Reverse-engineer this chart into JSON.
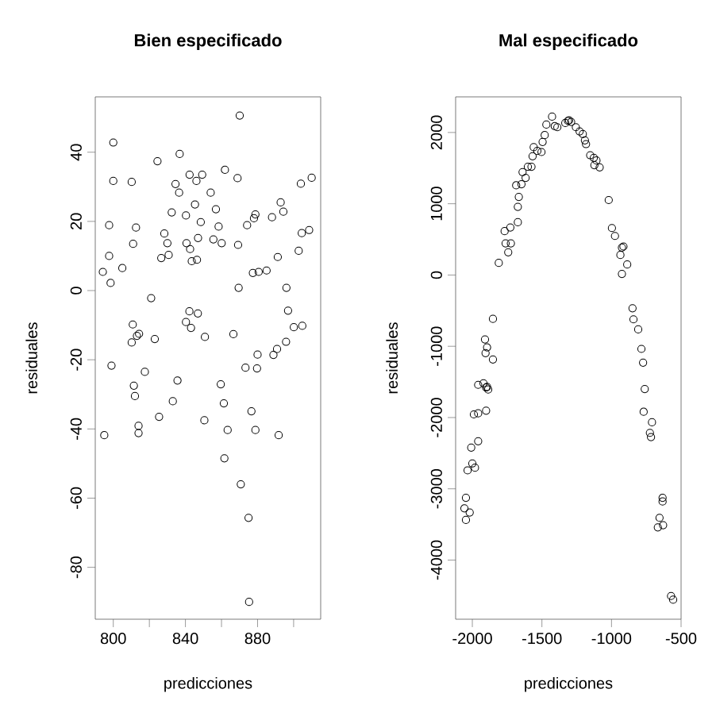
{
  "chart_data": [
    {
      "type": "scatter",
      "title": "Bien especificado",
      "xlabel": "predicciones",
      "ylabel": "residuales",
      "color": "#000000",
      "marker": "circle",
      "xlim": [
        790,
        915
      ],
      "ylim": [
        -95,
        56
      ],
      "xticks": [
        800,
        {
          "value": 820,
          "label": null
        },
        840,
        {
          "value": 860,
          "label": null
        },
        880,
        {
          "value": 900,
          "label": null
        }
      ],
      "yticks": [
        -80,
        -60,
        -40,
        -20,
        0,
        20,
        40
      ],
      "x": [
        794.2,
        800,
        797.7,
        797.7,
        798.5,
        800,
        799,
        805,
        810.2,
        811,
        812.6,
        810.8,
        810.2,
        813.1,
        814.3,
        821,
        823,
        817.5,
        824.5,
        836.8,
        826.6,
        830.7,
        828.3,
        830,
        832.4,
        834.5,
        836.5,
        840.3,
        842.3,
        846.1,
        849.3,
        845.3,
        848.5,
        840.6,
        842.6,
        843.5,
        846.4,
        847,
        854,
        856.9,
        858.4,
        855.5,
        860.1,
        861.9,
        868.9,
        870.1,
        869.2,
        869.5,
        874.2,
        878,
        878.8,
        877.4,
        880.6,
        885,
        888,
        891.2,
        892.8,
        894.3,
        902.8,
        904,
        910,
        904.5,
        908.6,
        896,
        896.9,
        900.1,
        904.8,
        895.8,
        890.8,
        888.8,
        880,
        879.7,
        873.3,
        866.6,
        842.2,
        846.9,
        840.3,
        843.1,
        850.8,
        835.6,
        833,
        811.4,
        812,
        859.6,
        861.3,
        876.6,
        795,
        814,
        814,
        825.4,
        850.5,
        863.4,
        861.6,
        870.7,
        878.8,
        891.7,
        875,
        875.3
      ],
      "values": [
        5.4,
        42.8,
        18.9,
        10,
        2.2,
        31.7,
        -21.7,
        6.5,
        31.4,
        13.5,
        18.2,
        -9.8,
        -15,
        -13.1,
        -12.5,
        -2.2,
        -14,
        -23.5,
        37.4,
        39.5,
        9.4,
        10.3,
        16.5,
        13.7,
        22.6,
        30.8,
        28.3,
        21.7,
        33.5,
        31.7,
        33.5,
        24.9,
        19.8,
        13.7,
        12,
        8.5,
        8.9,
        15.2,
        28.3,
        23.5,
        18.5,
        14.8,
        13.7,
        34.9,
        32.5,
        50.6,
        13.2,
        0.8,
        18.9,
        20.9,
        22,
        5.1,
        5.4,
        5.8,
        21.2,
        9.7,
        25.5,
        22.8,
        11.5,
        30.9,
        32.6,
        16.6,
        17.5,
        0.8,
        -5.8,
        -10.6,
        -10.2,
        -14.8,
        -16.9,
        -18.6,
        -18.5,
        -22.5,
        -22.3,
        -12.6,
        -6,
        -6.6,
        -9.1,
        -10.8,
        -13.4,
        -26,
        -32,
        -27.5,
        -30.5,
        -27.1,
        -32.6,
        -34.9,
        -41.8,
        -39.1,
        -41.2,
        -36.5,
        -37.5,
        -40.3,
        -48.5,
        -56,
        -40.3,
        -41.8,
        -65.7,
        -90
      ]
    },
    {
      "type": "scatter",
      "title": "Mal especificado",
      "xlabel": "predicciones",
      "ylabel": "residuales",
      "color": "#000000",
      "marker": "circle",
      "xlim": [
        -2120,
        -500
      ],
      "ylim": [
        -4830,
        2500
      ],
      "xticks": [
        -2000,
        -1500,
        -1000,
        -500
      ],
      "yticks": [
        -4000,
        -3000,
        -2000,
        -1000,
        0,
        1000,
        2000
      ],
      "x": [
        -1810,
        -1768,
        -1723,
        -1742,
        -1761,
        -1727,
        -1673,
        -1673,
        -1666,
        -1685,
        -1647,
        -1639,
        -1617,
        -1601,
        -1575,
        -1567,
        -1559,
        -1533,
        -1503,
        -1495,
        -1480,
        -1468,
        -1427,
        -1408,
        -1389,
        -1313,
        -1305,
        -1290,
        -1332,
        -1256,
        -1229,
        -1206,
        -1191,
        -1183,
        -1153,
        -1127,
        -1108,
        -1123,
        -1085,
        -1020,
        -997,
        -975,
        -925,
        -914,
        -936,
        -925,
        -887,
        -849,
        -842,
        -808,
        -785,
        -773,
        -761,
        -1852,
        -1909,
        -1894,
        -1905,
        -1852,
        -1958,
        -1920,
        -1894,
        -1901,
        -1886,
        -1901,
        -1989,
        -1958,
        -2008,
        -1958,
        -2000,
        -2034,
        -1981,
        -2046,
        -2057,
        -2019,
        -2046,
        -769,
        -709,
        -724,
        -716,
        -633,
        -633,
        -655,
        -667,
        -629,
        -572,
        -557
      ],
      "values": [
        170,
        615,
        444,
        319,
        444,
        667,
        741,
        956,
        1096,
        1259,
        1274,
        1444,
        1363,
        1519,
        1519,
        1667,
        1793,
        1741,
        1726,
        1867,
        1963,
        2111,
        2222,
        2089,
        2074,
        2163,
        2170,
        2148,
        2133,
        2074,
        2015,
        1978,
        1889,
        1837,
        1681,
        1644,
        1607,
        1541,
        1511,
        1052,
        659,
        548,
        385,
        400,
        281,
        15,
        148,
        -467,
        -622,
        -763,
        -1037,
        -1230,
        -1600,
        -615,
        -904,
        -1015,
        -1096,
        -1185,
        -1541,
        -1519,
        -1570,
        -1578,
        -1607,
        -1904,
        -1956,
        -1941,
        -2422,
        -2333,
        -2644,
        -2741,
        -2704,
        -3126,
        -3274,
        -3333,
        -3437,
        -1919,
        -2067,
        -2215,
        -2274,
        -3126,
        -3178,
        -3407,
        -3541,
        -3511,
        -4504,
        -4556
      ]
    }
  ]
}
